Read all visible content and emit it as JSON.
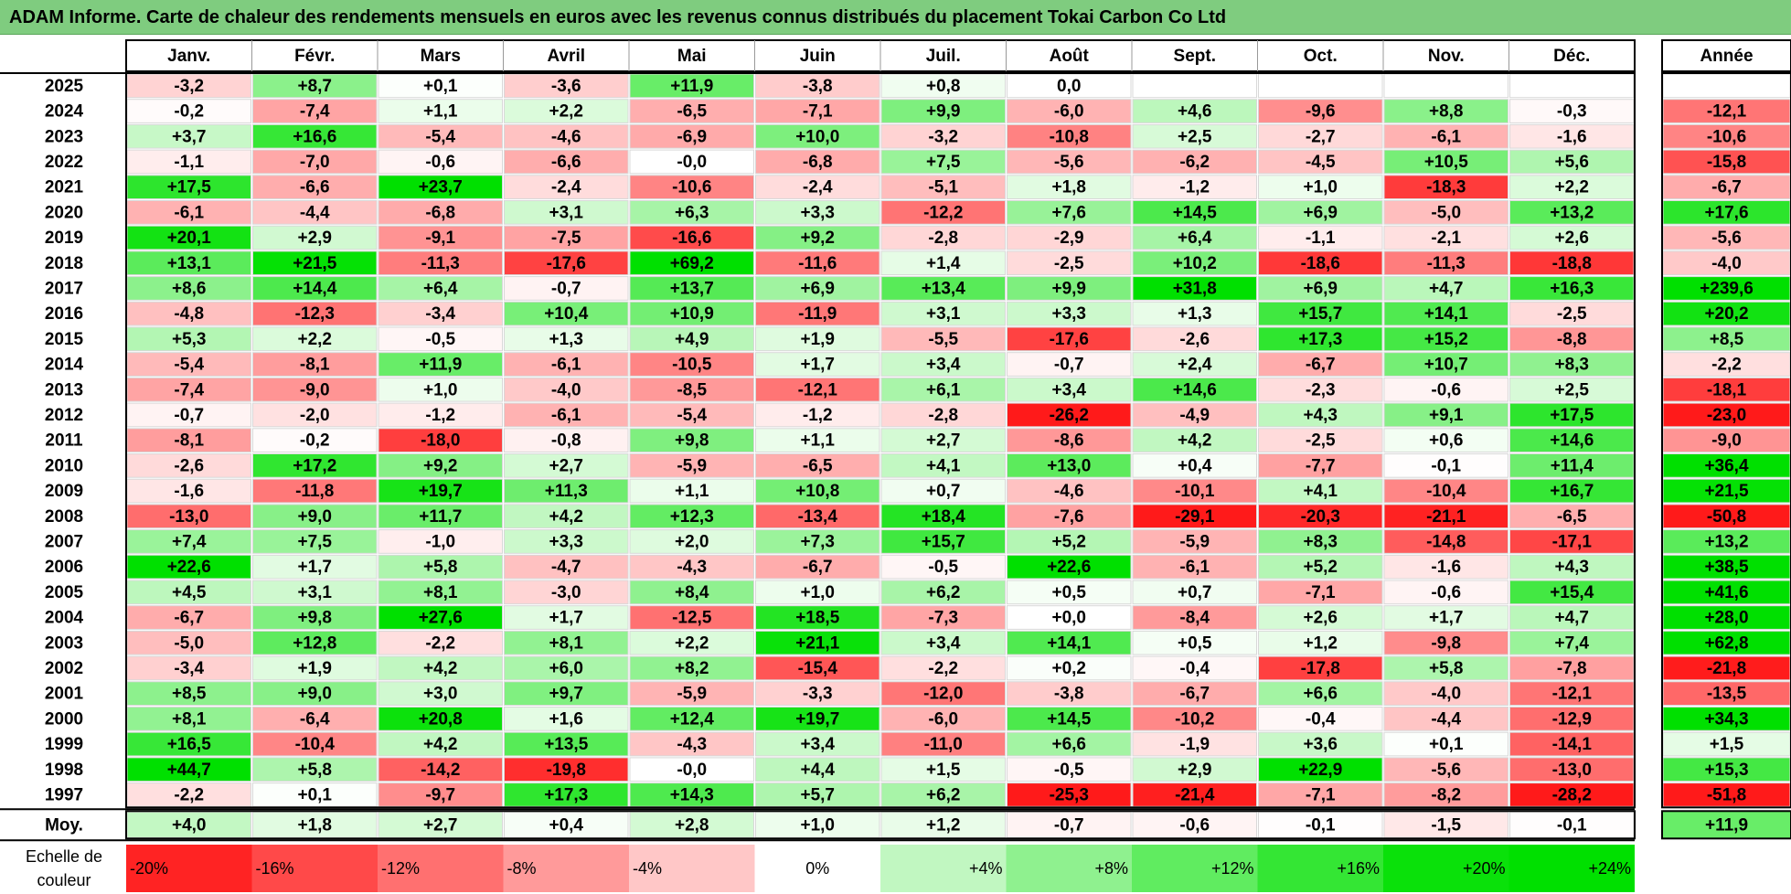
{
  "title": "ADAM Informe. Carte de chaleur des rendements mensuels en euros avec les revenus connus distribués du placement Tokai Carbon Co Ltd",
  "chart_data": {
    "type": "heatmap",
    "months": [
      "Janv.",
      "Févr.",
      "Mars",
      "Avril",
      "Mai",
      "Juin",
      "Juil.",
      "Août",
      "Sept.",
      "Oct.",
      "Nov.",
      "Déc."
    ],
    "year_header": "Année",
    "rows": [
      {
        "year": "2025",
        "values": [
          "-3,2",
          "+8,7",
          "+0,1",
          "-3,6",
          "+11,9",
          "-3,8",
          "+0,8",
          "0,0",
          "",
          "",
          "",
          ""
        ],
        "annual": ""
      },
      {
        "year": "2024",
        "values": [
          "-0,2",
          "-7,4",
          "+1,1",
          "+2,2",
          "-6,5",
          "-7,1",
          "+9,9",
          "-6,0",
          "+4,6",
          "-9,6",
          "+8,8",
          "-0,3"
        ],
        "annual": "-12,1"
      },
      {
        "year": "2023",
        "values": [
          "+3,7",
          "+16,6",
          "-5,4",
          "-4,6",
          "-6,9",
          "+10,0",
          "-3,2",
          "-10,8",
          "+2,5",
          "-2,7",
          "-6,1",
          "-1,6"
        ],
        "annual": "-10,6"
      },
      {
        "year": "2022",
        "values": [
          "-1,1",
          "-7,0",
          "-0,6",
          "-6,6",
          "-0,0",
          "-6,8",
          "+7,5",
          "-5,6",
          "-6,2",
          "-4,5",
          "+10,5",
          "+5,6"
        ],
        "annual": "-15,8"
      },
      {
        "year": "2021",
        "values": [
          "+17,5",
          "-6,6",
          "+23,7",
          "-2,4",
          "-10,6",
          "-2,4",
          "-5,1",
          "+1,8",
          "-1,2",
          "+1,0",
          "-18,3",
          "+2,2"
        ],
        "annual": "-6,7"
      },
      {
        "year": "2020",
        "values": [
          "-6,1",
          "-4,4",
          "-6,8",
          "+3,1",
          "+6,3",
          "+3,3",
          "-12,2",
          "+7,6",
          "+14,5",
          "+6,9",
          "-5,0",
          "+13,2"
        ],
        "annual": "+17,6"
      },
      {
        "year": "2019",
        "values": [
          "+20,1",
          "+2,9",
          "-9,1",
          "-7,5",
          "-16,6",
          "+9,2",
          "-2,8",
          "-2,9",
          "+6,4",
          "-1,1",
          "-2,1",
          "+2,6"
        ],
        "annual": "-5,6"
      },
      {
        "year": "2018",
        "values": [
          "+13,1",
          "+21,5",
          "-11,3",
          "-17,6",
          "+69,2",
          "-11,6",
          "+1,4",
          "-2,5",
          "+10,2",
          "-18,6",
          "-11,3",
          "-18,8"
        ],
        "annual": "-4,0"
      },
      {
        "year": "2017",
        "values": [
          "+8,6",
          "+14,4",
          "+6,4",
          "-0,7",
          "+13,7",
          "+6,9",
          "+13,4",
          "+9,9",
          "+31,8",
          "+6,9",
          "+4,7",
          "+16,3"
        ],
        "annual": "+239,6"
      },
      {
        "year": "2016",
        "values": [
          "-4,8",
          "-12,3",
          "-3,4",
          "+10,4",
          "+10,9",
          "-11,9",
          "+3,1",
          "+3,3",
          "+1,3",
          "+15,7",
          "+14,1",
          "-2,5"
        ],
        "annual": "+20,2"
      },
      {
        "year": "2015",
        "values": [
          "+5,3",
          "+2,2",
          "-0,5",
          "+1,3",
          "+4,9",
          "+1,9",
          "-5,5",
          "-17,6",
          "-2,6",
          "+17,3",
          "+15,2",
          "-8,8"
        ],
        "annual": "+8,5"
      },
      {
        "year": "2014",
        "values": [
          "-5,4",
          "-8,1",
          "+11,9",
          "-6,1",
          "-10,5",
          "+1,7",
          "+3,4",
          "-0,7",
          "+2,4",
          "-6,7",
          "+10,7",
          "+8,3"
        ],
        "annual": "-2,2"
      },
      {
        "year": "2013",
        "values": [
          "-7,4",
          "-9,0",
          "+1,0",
          "-4,0",
          "-8,5",
          "-12,1",
          "+6,1",
          "+3,4",
          "+14,6",
          "-2,3",
          "-0,6",
          "+2,5"
        ],
        "annual": "-18,1"
      },
      {
        "year": "2012",
        "values": [
          "-0,7",
          "-2,0",
          "-1,2",
          "-6,1",
          "-5,4",
          "-1,2",
          "-2,8",
          "-26,2",
          "-4,9",
          "+4,3",
          "+9,1",
          "+17,5"
        ],
        "annual": "-23,0"
      },
      {
        "year": "2011",
        "values": [
          "-8,1",
          "-0,2",
          "-18,0",
          "-0,8",
          "+9,8",
          "+1,1",
          "+2,7",
          "-8,6",
          "+4,2",
          "-2,5",
          "+0,6",
          "+14,6"
        ],
        "annual": "-9,0"
      },
      {
        "year": "2010",
        "values": [
          "-2,6",
          "+17,2",
          "+9,2",
          "+2,7",
          "-5,9",
          "-6,5",
          "+4,1",
          "+13,0",
          "+0,4",
          "-7,7",
          "-0,1",
          "+11,4"
        ],
        "annual": "+36,4"
      },
      {
        "year": "2009",
        "values": [
          "-1,6",
          "-11,8",
          "+19,7",
          "+11,3",
          "+1,1",
          "+10,8",
          "+0,7",
          "-4,6",
          "-10,1",
          "+4,1",
          "-10,4",
          "+16,7"
        ],
        "annual": "+21,5"
      },
      {
        "year": "2008",
        "values": [
          "-13,0",
          "+9,0",
          "+11,7",
          "+4,2",
          "+12,3",
          "-13,4",
          "+18,4",
          "-7,6",
          "-29,1",
          "-20,3",
          "-21,1",
          "-6,5"
        ],
        "annual": "-50,8"
      },
      {
        "year": "2007",
        "values": [
          "+7,4",
          "+7,5",
          "-1,0",
          "+3,3",
          "+2,0",
          "+7,3",
          "+15,7",
          "+5,2",
          "-5,9",
          "+8,3",
          "-14,8",
          "-17,1"
        ],
        "annual": "+13,2"
      },
      {
        "year": "2006",
        "values": [
          "+22,6",
          "+1,7",
          "+5,8",
          "-4,7",
          "-4,3",
          "-6,7",
          "-0,5",
          "+22,6",
          "-6,1",
          "+5,2",
          "-1,6",
          "+4,3"
        ],
        "annual": "+38,5"
      },
      {
        "year": "2005",
        "values": [
          "+4,5",
          "+3,1",
          "+8,1",
          "-3,0",
          "+8,4",
          "+1,0",
          "+6,2",
          "+0,5",
          "+0,7",
          "-7,1",
          "-0,6",
          "+15,4"
        ],
        "annual": "+41,6"
      },
      {
        "year": "2004",
        "values": [
          "-6,7",
          "+9,8",
          "+27,6",
          "+1,7",
          "-12,5",
          "+18,5",
          "-7,3",
          "+0,0",
          "-8,4",
          "+2,6",
          "+1,7",
          "+4,7"
        ],
        "annual": "+28,0"
      },
      {
        "year": "2003",
        "values": [
          "-5,0",
          "+12,8",
          "-2,2",
          "+8,1",
          "+2,2",
          "+21,1",
          "+3,4",
          "+14,1",
          "+0,5",
          "+1,2",
          "-9,8",
          "+7,4"
        ],
        "annual": "+62,8"
      },
      {
        "year": "2002",
        "values": [
          "-3,4",
          "+1,9",
          "+4,2",
          "+6,0",
          "+8,2",
          "-15,4",
          "-2,2",
          "+0,2",
          "-0,4",
          "-17,8",
          "+5,8",
          "-7,8"
        ],
        "annual": "-21,8"
      },
      {
        "year": "2001",
        "values": [
          "+8,5",
          "+9,0",
          "+3,0",
          "+9,7",
          "-5,9",
          "-3,3",
          "-12,0",
          "-3,8",
          "-6,7",
          "+6,6",
          "-4,0",
          "-12,1"
        ],
        "annual": "-13,5"
      },
      {
        "year": "2000",
        "values": [
          "+8,1",
          "-6,4",
          "+20,8",
          "+1,6",
          "+12,4",
          "+19,7",
          "-6,0",
          "+14,5",
          "-10,2",
          "-0,4",
          "-4,4",
          "-12,9"
        ],
        "annual": "+34,3"
      },
      {
        "year": "1999",
        "values": [
          "+16,5",
          "-10,4",
          "+4,2",
          "+13,5",
          "-4,3",
          "+3,4",
          "-11,0",
          "+6,6",
          "-1,9",
          "+3,6",
          "+0,1",
          "-14,1"
        ],
        "annual": "+1,5"
      },
      {
        "year": "1998",
        "values": [
          "+44,7",
          "+5,8",
          "-14,2",
          "-19,8",
          "-0,0",
          "+4,4",
          "+1,5",
          "-0,5",
          "+2,9",
          "+22,9",
          "-5,6",
          "-13,0"
        ],
        "annual": "+15,3"
      },
      {
        "year": "1997",
        "values": [
          "-2,2",
          "+0,1",
          "-9,7",
          "+17,3",
          "+14,3",
          "+5,7",
          "+6,2",
          "-25,3",
          "-21,4",
          "-7,1",
          "-8,2",
          "-28,2"
        ],
        "annual": "-51,8"
      }
    ],
    "average": {
      "label": "Moy.",
      "values": [
        "+4,0",
        "+1,8",
        "+2,7",
        "+0,4",
        "+2,8",
        "+1,0",
        "+1,2",
        "-0,7",
        "-0,6",
        "-0,1",
        "-1,5",
        "-0,1"
      ],
      "annual": "+11,9"
    },
    "scale": {
      "label_line1": "Echelle de",
      "label_line2": "couleur",
      "steps": [
        {
          "label": "-20%",
          "value": -20,
          "align": "left"
        },
        {
          "label": "-16%",
          "value": -16,
          "align": "left"
        },
        {
          "label": "-12%",
          "value": -12,
          "align": "left"
        },
        {
          "label": "-8%",
          "value": -8,
          "align": "left"
        },
        {
          "label": "-4%",
          "value": -4,
          "align": "left"
        },
        {
          "label": "0%",
          "value": 0,
          "align": "center"
        },
        {
          "label": "+4%",
          "value": 4,
          "align": "right"
        },
        {
          "label": "+8%",
          "value": 8,
          "align": "right"
        },
        {
          "label": "+12%",
          "value": 12,
          "align": "right"
        },
        {
          "label": "+16%",
          "value": 16,
          "align": "right"
        },
        {
          "label": "+20%",
          "value": 20,
          "align": "right"
        },
        {
          "label": "+24%",
          "value": 24,
          "align": "right"
        }
      ]
    },
    "colors": {
      "negative_max": "#ff0000",
      "positive_max": "#00e000",
      "neutral": "#ffffff"
    }
  }
}
